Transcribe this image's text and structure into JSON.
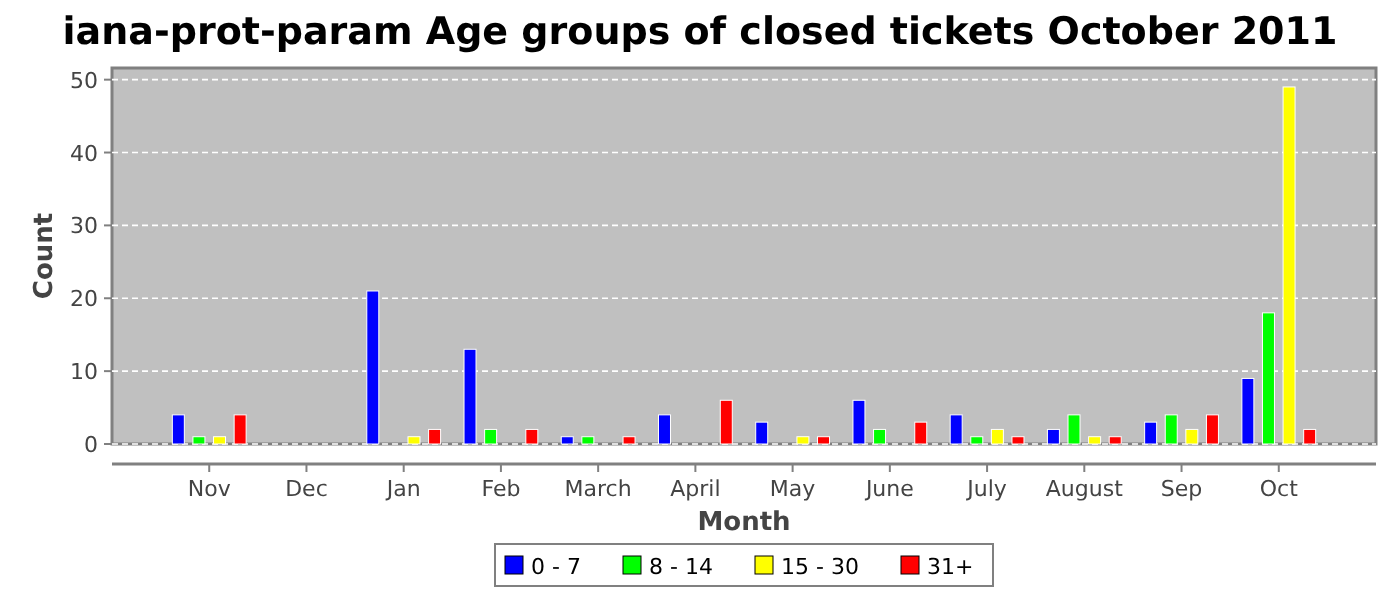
{
  "chart_data": {
    "type": "bar",
    "title": "iana-prot-param Age groups of closed tickets October 2011",
    "xlabel": "Month",
    "ylabel": "Count",
    "categories": [
      "Nov",
      "Dec",
      "Jan",
      "Feb",
      "March",
      "April",
      "May",
      "June",
      "July",
      "August",
      "Sep",
      "Oct"
    ],
    "series": [
      {
        "name": "0 - 7",
        "color": "#0000ff",
        "values": [
          4,
          0,
          21,
          13,
          1,
          4,
          3,
          6,
          4,
          2,
          3,
          9
        ]
      },
      {
        "name": "8 - 14",
        "color": "#00ff00",
        "values": [
          1,
          0,
          0,
          2,
          1,
          0,
          0,
          2,
          1,
          4,
          4,
          18
        ]
      },
      {
        "name": "15 - 30",
        "color": "#ffff00",
        "values": [
          1,
          0,
          1,
          0,
          0,
          0,
          1,
          0,
          2,
          1,
          2,
          49
        ]
      },
      {
        "name": "31+",
        "color": "#ff0000",
        "values": [
          4,
          0,
          2,
          2,
          1,
          6,
          1,
          3,
          1,
          1,
          4,
          2
        ]
      }
    ],
    "ylim": [
      0,
      51.6
    ],
    "yticks": [
      0,
      10,
      20,
      30,
      40,
      50
    ],
    "grid": "y",
    "legend": "bottom"
  }
}
